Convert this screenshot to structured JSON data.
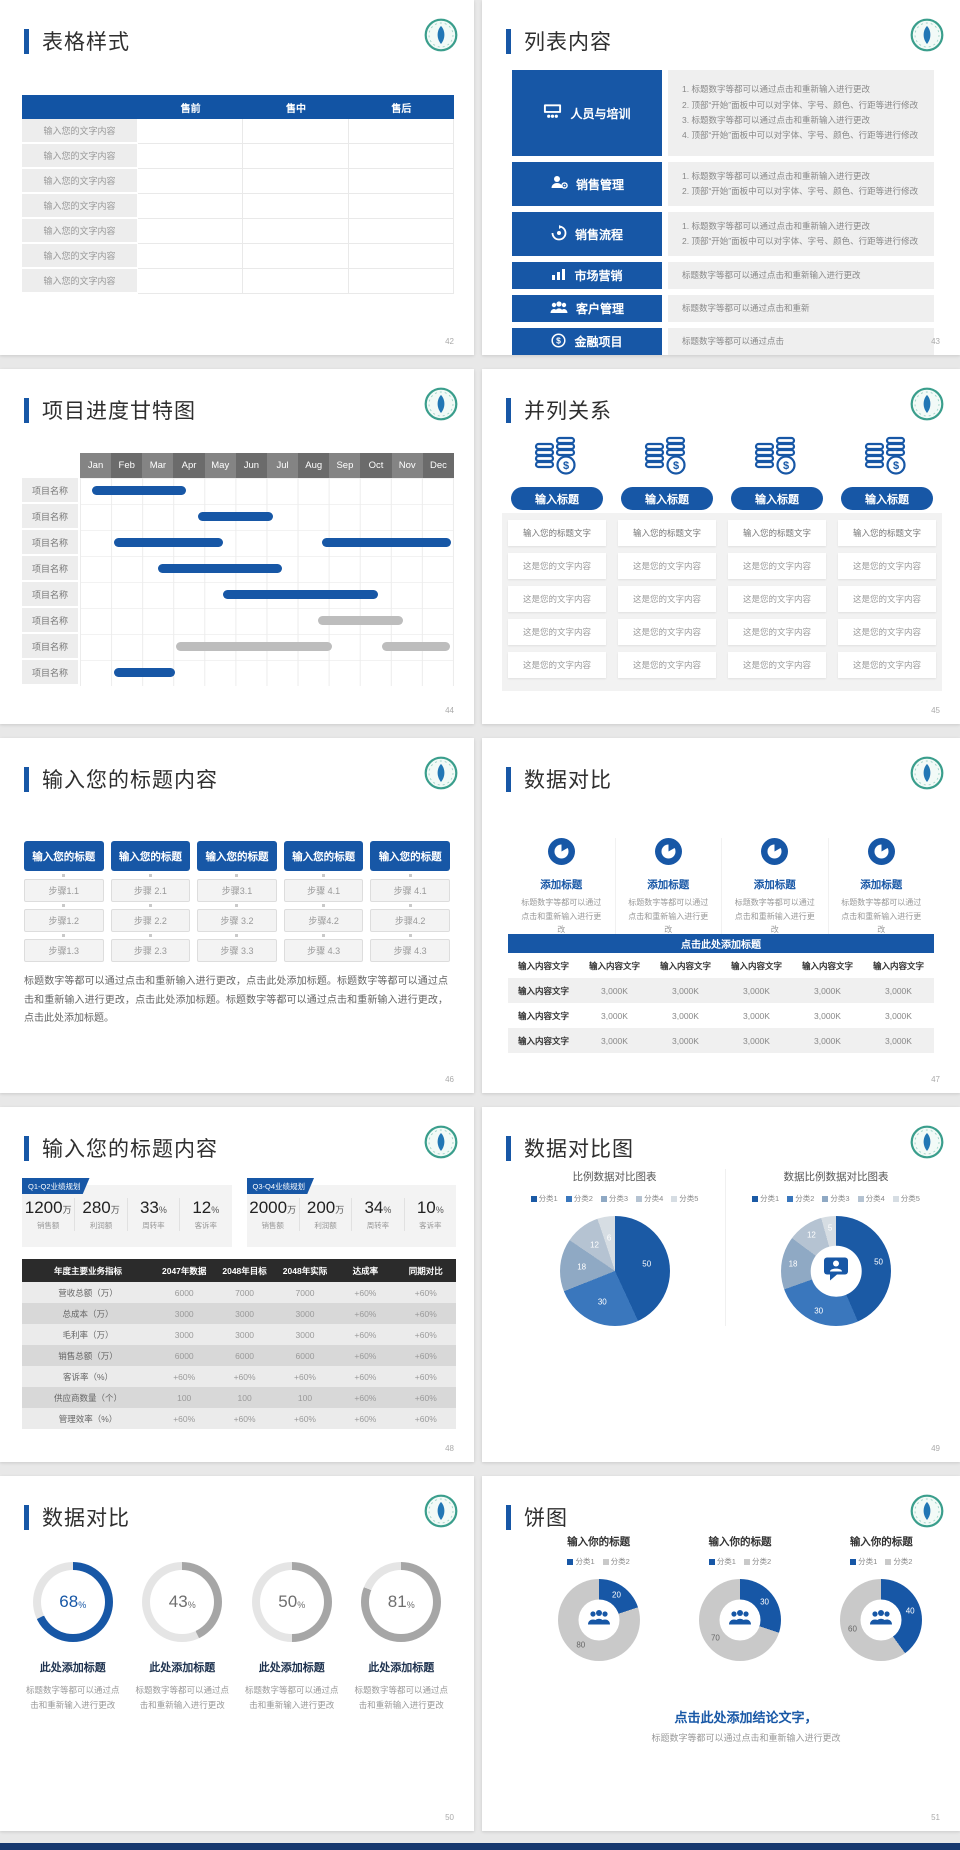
{
  "page": {
    "background": "#e8e8e8",
    "bottom_strip_color": "#17386e"
  },
  "brand": {
    "accent": "#1757a6",
    "logo_icon": "school-emblem-logo"
  },
  "icons": [
    "school-emblem-logo",
    "training-presentation-icon",
    "person-gear-icon",
    "process-refresh-icon",
    "bar-chart-icon",
    "people-group-icon",
    "finance-dollar-icon",
    "coin-stacks-icon",
    "pie-chart-icon",
    "person-chat-icon"
  ],
  "slides": {
    "s42": {
      "title": "表格样式",
      "page_no": "42",
      "table": {
        "headers": [
          "",
          "售前",
          "售中",
          "售后"
        ],
        "rows": [
          [
            "输入您的文字内容",
            "",
            "",
            ""
          ],
          [
            "输入您的文字内容",
            "",
            "",
            ""
          ],
          [
            "输入您的文字内容",
            "",
            "",
            ""
          ],
          [
            "输入您的文字内容",
            "",
            "",
            ""
          ],
          [
            "输入您的文字内容",
            "",
            "",
            ""
          ],
          [
            "输入您的文字内容",
            "",
            "",
            ""
          ],
          [
            "输入您的文字内容",
            "",
            "",
            ""
          ]
        ]
      }
    },
    "s43": {
      "title": "列表内容",
      "page_no": "43",
      "items": [
        {
          "label": "人员与培训",
          "icon": "training-presentation-icon",
          "lines": [
            "1.  标题数字等都可以通过点击和重新输入进行更改",
            "2.  顶部“开始”面板中可以对字体、字号、颜色、行距等进行修改",
            "3.  标题数字等都可以通过点击和重新输入进行更改",
            "4.  顶部“开始”面板中可以对字体、字号、颜色、行距等进行修改"
          ]
        },
        {
          "label": "销售管理",
          "icon": "person-gear-icon",
          "lines": [
            "1.  标题数字等都可以通过点击和重新输入进行更改",
            "2.  顶部“开始”面板中可以对字体、字号、颜色、行距等进行修改"
          ]
        },
        {
          "label": "销售流程",
          "icon": "process-refresh-icon",
          "lines": [
            "1.  标题数字等都可以通过点击和重新输入进行更改",
            "2.  顶部“开始”面板中可以对字体、字号、颜色、行距等进行修改"
          ]
        },
        {
          "label": "市场营销",
          "icon": "bar-chart-icon",
          "lines": [
            "标题数字等都可以通过点击和重新输入进行更改"
          ]
        },
        {
          "label": "客户管理",
          "icon": "people-group-icon",
          "lines": [
            "标题数字等都可以通过点击和重新"
          ]
        },
        {
          "label": "金融项目",
          "icon": "finance-dollar-icon",
          "lines": [
            "标题数字等都可以通过点击"
          ]
        }
      ]
    },
    "s44": {
      "title": "项目进度甘特图",
      "page_no": "44",
      "months": [
        "Jan",
        "Feb",
        "Mar",
        "Apr",
        "May",
        "Jun",
        "Jul",
        "Aug",
        "Sep",
        "Oct",
        "Nov",
        "Dec"
      ],
      "row_labels": [
        "项目名称",
        "项目名称",
        "项目名称",
        "项目名称",
        "项目名称",
        "项目名称",
        "项目名称",
        "项目名称"
      ],
      "gantt": {
        "type": "gantt",
        "bar_colors": {
          "blue": "#1757a6",
          "gray": "#bdbdbd"
        },
        "bars": [
          {
            "row": 0,
            "start": 1.4,
            "end": 4.4,
            "color": "blue"
          },
          {
            "row": 1,
            "start": 4.8,
            "end": 7.2,
            "color": "blue"
          },
          {
            "row": 2,
            "start": 2.1,
            "end": 5.6,
            "color": "blue"
          },
          {
            "row": 2,
            "start": 8.8,
            "end": 12.95,
            "color": "blue"
          },
          {
            "row": 3,
            "start": 3.5,
            "end": 7.5,
            "color": "blue"
          },
          {
            "row": 4,
            "start": 5.6,
            "end": 10.6,
            "color": "blue"
          },
          {
            "row": 5,
            "start": 8.65,
            "end": 11.4,
            "color": "gray"
          },
          {
            "row": 6,
            "start": 4.1,
            "end": 9.1,
            "color": "gray"
          },
          {
            "row": 6,
            "start": 10.7,
            "end": 12.9,
            "color": "gray"
          },
          {
            "row": 7,
            "start": 2.1,
            "end": 4.05,
            "color": "blue"
          }
        ]
      }
    },
    "s45": {
      "title": "并列关系",
      "page_no": "45",
      "column_title": "输入标题",
      "rows": [
        "输入您的标题文字",
        "这是您的文字内容",
        "这是您的文字内容",
        "这是您的文字内容",
        "这是您的文字内容"
      ]
    },
    "s46": {
      "title": "输入您的标题内容",
      "page_no": "46",
      "column_header": "输入您的标题",
      "columns": [
        [
          "步骤1.1",
          "步骤1.2",
          "步骤1.3"
        ],
        [
          "步骤 2.1",
          "步骤 2.2",
          "步骤 2.3"
        ],
        [
          "步骤3.1",
          "步骤 3.2",
          "步骤 3.3"
        ],
        [
          "步骤 4.1",
          "步骤4.2",
          "步骤 4.3"
        ],
        [
          "步骤 4.1",
          "步骤4.2",
          "步骤 4.3"
        ]
      ],
      "paragraph": "标题数字等都可以通过点击和重新输入进行更改，点击此处添加标题。标题数字等都可以通过点击和重新输入进行更改，点击此处添加标题。标题数字等都可以通过点击和重新输入进行更改，点击此处添加标题。"
    },
    "s47": {
      "title": "数据对比",
      "page_no": "47",
      "feature_title": "添加标题",
      "feature_desc": "标题数字等都可以通过点击和重新输入进行更改",
      "table_title": "点击此处添加标题",
      "table_rows": [
        [
          "输入内容文字",
          "输入内容文字",
          "输入内容文字",
          "输入内容文字",
          "输入内容文字",
          "输入内容文字"
        ],
        [
          "输入内容文字",
          "3,000K",
          "3,000K",
          "3,000K",
          "3,000K",
          "3,000K"
        ],
        [
          "输入内容文字",
          "3,000K",
          "3,000K",
          "3,000K",
          "3,000K",
          "3,000K"
        ],
        [
          "输入内容文字",
          "3,000K",
          "3,000K",
          "3,000K",
          "3,000K",
          "3,000K"
        ]
      ]
    },
    "s48": {
      "title": "输入您的标题内容",
      "page_no": "48",
      "groups": [
        {
          "tag": "Q1-Q2业绩规划",
          "stats": [
            {
              "value": "1200",
              "unit": "万",
              "label": "销售额"
            },
            {
              "value": "280",
              "unit": "万",
              "label": "利润额"
            },
            {
              "value": "33",
              "unit": "%",
              "label": "周转率"
            },
            {
              "value": "12",
              "unit": "%",
              "label": "客诉率"
            }
          ]
        },
        {
          "tag": "Q3-Q4业绩规划",
          "stats": [
            {
              "value": "2000",
              "unit": "万",
              "label": "销售额"
            },
            {
              "value": "200",
              "unit": "万",
              "label": "利润额"
            },
            {
              "value": "34",
              "unit": "%",
              "label": "周转率"
            },
            {
              "value": "10",
              "unit": "%",
              "label": "客诉率"
            }
          ]
        }
      ],
      "table_rows": [
        [
          "年度主要业务指标",
          "2047年数据",
          "2048年目标",
          "2048年实际",
          "达成率",
          "同期对比"
        ],
        [
          "营收总额（万）",
          "6000",
          "7000",
          "7000",
          "+60%",
          "+60%"
        ],
        [
          "总成本（万）",
          "3000",
          "3000",
          "3000",
          "+60%",
          "+60%"
        ],
        [
          "毛利率（万）",
          "3000",
          "3000",
          "3000",
          "+60%",
          "+60%"
        ],
        [
          "销售总额（万）",
          "6000",
          "6000",
          "6000",
          "+60%",
          "+60%"
        ],
        [
          "客诉率（%）",
          "+60%",
          "+60%",
          "+60%",
          "+60%",
          "+60%"
        ],
        [
          "供应商数量（个）",
          "100",
          "100",
          "100",
          "+60%",
          "+60%"
        ],
        [
          "管理效率（%）",
          "+60%",
          "+60%",
          "+60%",
          "+60%",
          "+60%"
        ]
      ]
    },
    "s49": {
      "title": "数据对比图",
      "page_no": "49",
      "charts": [
        {
          "type": "pie",
          "name": "比例数据对比图表",
          "values": [
            50,
            30,
            18,
            12,
            6
          ],
          "colors": [
            "#1b5aa5",
            "#3a77bd",
            "#8fa9c4",
            "#b5c3d2",
            "#d6dde3"
          ],
          "hole": 0,
          "label_r": 0.6,
          "legend": [
            {
              "label": "分类1",
              "color": "#1b5aa5"
            },
            {
              "label": "分类2",
              "color": "#3a77bd"
            },
            {
              "label": "分类3",
              "color": "#8fa9c4"
            },
            {
              "label": "分类4",
              "color": "#b5c3d2"
            },
            {
              "label": "分类5",
              "color": "#d6dde3"
            }
          ]
        },
        {
          "type": "donut",
          "name": "数据比例数据对比图表",
          "values": [
            50,
            30,
            18,
            12,
            5
          ],
          "colors": [
            "#1b5aa5",
            "#3a77bd",
            "#8fa9c4",
            "#b5c3d2",
            "#d6dde3"
          ],
          "hole": 0.46,
          "label_r": 0.79,
          "center_icon": "person-chat-icon",
          "legend": [
            {
              "label": "分类1",
              "color": "#1b5aa5"
            },
            {
              "label": "分类2",
              "color": "#3a77bd"
            },
            {
              "label": "分类3",
              "color": "#8fa9c4"
            },
            {
              "label": "分类4",
              "color": "#b5c3d2"
            },
            {
              "label": "分类5",
              "color": "#d6dde3"
            }
          ]
        }
      ]
    },
    "s50": {
      "title": "数据对比",
      "page_no": "50",
      "item_title": "此处添加标题",
      "item_desc": "标题数字等都可以通过点击和重新输入进行更改",
      "gauges": [
        {
          "percent": 68,
          "suffix": "%",
          "arc_color": "#1757a6",
          "rest_color": "#e5e5e5",
          "num_color": "#1757a6"
        },
        {
          "percent": 43,
          "suffix": "%",
          "arc_color": "#a6a6a6",
          "rest_color": "#e5e5e5",
          "num_color": "#6f6f6f"
        },
        {
          "percent": 50,
          "suffix": "%",
          "arc_color": "#a6a6a6",
          "rest_color": "#e5e5e5",
          "num_color": "#6f6f6f"
        },
        {
          "percent": 81,
          "suffix": "%",
          "arc_color": "#a6a6a6",
          "rest_color": "#e5e5e5",
          "num_color": "#6f6f6f"
        }
      ]
    },
    "s51": {
      "title": "饼图",
      "page_no": "51",
      "chart_title": "输入你的标题",
      "legend": [
        {
          "label": "分类1",
          "color": "#1757a6"
        },
        {
          "label": "分类2",
          "color": "#c9c9c9"
        }
      ],
      "charts": [
        {
          "type": "donut",
          "values": [
            20,
            80
          ],
          "colors": [
            "#1757a6",
            "#c9c9c9"
          ],
          "label_colors": [
            "#ffffff",
            "#666666"
          ],
          "hole": 0.5,
          "label_r": 0.74,
          "center_icon": "people-group-icon"
        },
        {
          "type": "donut",
          "values": [
            30,
            70
          ],
          "colors": [
            "#1757a6",
            "#c9c9c9"
          ],
          "label_colors": [
            "#ffffff",
            "#666666"
          ],
          "hole": 0.5,
          "label_r": 0.74,
          "center_icon": "people-group-icon"
        },
        {
          "type": "donut",
          "values": [
            40,
            60
          ],
          "colors": [
            "#1757a6",
            "#c9c9c9"
          ],
          "label_colors": [
            "#ffffff",
            "#666666"
          ],
          "hole": 0.5,
          "label_r": 0.74,
          "center_icon": "people-group-icon"
        }
      ],
      "conclusion": "点击此处添加结论文字，",
      "conclusion_sub": "标题数字等都可以通过点击和重新输入进行更改"
    }
  }
}
